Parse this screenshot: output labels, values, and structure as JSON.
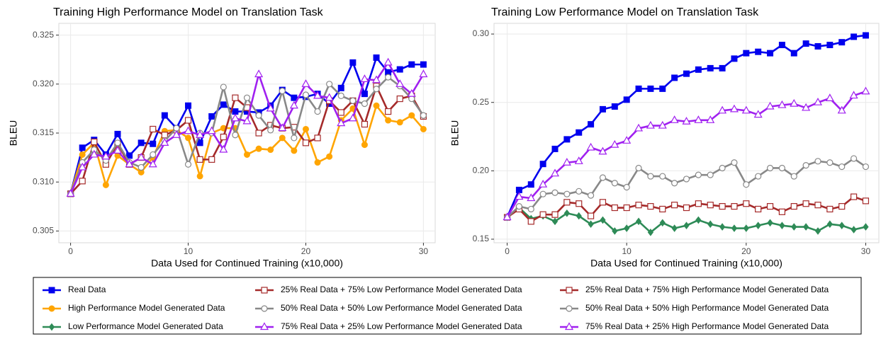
{
  "chart_data": [
    {
      "type": "line",
      "title": "Training High Performance Model on Translation Task",
      "x_label": "Data Used for Continued Training (x10,000)",
      "y_label": "BLEU",
      "x": [
        0,
        1,
        2,
        3,
        4,
        5,
        6,
        7,
        8,
        9,
        10,
        11,
        12,
        13,
        14,
        15,
        16,
        17,
        18,
        19,
        20,
        21,
        22,
        23,
        24,
        25,
        26,
        27,
        28,
        29,
        30
      ],
      "xlim": [
        -1,
        31
      ],
      "xticks": [
        0,
        10,
        20,
        30
      ],
      "ylim": [
        0.3038,
        0.3262
      ],
      "yticks": [
        0.305,
        {
          "value": 0.31,
          "label": "0.310"
        },
        0.315,
        {
          "value": 0.32,
          "label": "0.320"
        },
        0.325
      ],
      "grid": true,
      "series": [
        {
          "name": "Real Data",
          "color": "#0000ee",
          "marker": "square",
          "values": [
            0.3088,
            0.3135,
            0.3143,
            0.3128,
            0.3149,
            0.3127,
            0.314,
            0.3139,
            0.3168,
            0.3155,
            0.3178,
            0.314,
            0.3167,
            0.3179,
            0.3172,
            0.3172,
            0.3171,
            0.3178,
            0.3194,
            0.3186,
            0.3187,
            0.319,
            0.318,
            0.3196,
            0.3222,
            0.319,
            0.3227,
            0.3212,
            0.3215,
            0.322,
            0.322
          ]
        },
        {
          "name": "High Performance Model Generated Data",
          "color": "#ffa500",
          "marker": "circle",
          "values": [
            0.3088,
            0.3128,
            0.314,
            0.3097,
            0.3127,
            0.3118,
            0.311,
            0.3125,
            0.3152,
            0.3153,
            0.3145,
            0.3106,
            0.315,
            0.3155,
            0.3155,
            0.3128,
            0.3134,
            0.3133,
            0.3145,
            0.3132,
            0.3154,
            0.312,
            0.3126,
            0.3163,
            0.3175,
            0.3138,
            0.3178,
            0.3163,
            0.3161,
            0.3168,
            0.3154
          ]
        },
        {
          "name": "25% Real Data + 75% High Performance Model Generated Data",
          "color": "#a52a2a",
          "marker": "open-square",
          "values": [
            0.3088,
            0.3101,
            0.3141,
            0.3118,
            0.3139,
            0.3118,
            0.3125,
            0.3154,
            0.3148,
            0.3153,
            0.3163,
            0.3123,
            0.3123,
            0.3146,
            0.3186,
            0.3176,
            0.315,
            0.3158,
            0.3155,
            0.3156,
            0.314,
            0.3145,
            0.3183,
            0.3171,
            0.3183,
            0.3159,
            0.3198,
            0.3172,
            0.3185,
            0.3188,
            0.3167
          ]
        },
        {
          "name": "50% Real Data + 50% High Performance Model Generated Data",
          "color": "#888888",
          "marker": "open-circle",
          "values": [
            0.3088,
            0.312,
            0.3133,
            0.3122,
            0.314,
            0.312,
            0.3115,
            0.3128,
            0.3142,
            0.3155,
            0.3118,
            0.315,
            0.315,
            0.3197,
            0.3148,
            0.3186,
            0.3168,
            0.3153,
            0.3193,
            0.3145,
            0.3189,
            0.3172,
            0.32,
            0.3188,
            0.3183,
            0.318,
            0.3195,
            0.3207,
            0.3198,
            0.3185,
            0.3168
          ]
        },
        {
          "name": "75% Real Data + 25% High Performance Model Generated Data",
          "color": "#a020f0",
          "marker": "open-triangle",
          "values": [
            0.3088,
            0.3115,
            0.3128,
            0.3126,
            0.3132,
            0.3118,
            0.3125,
            0.3118,
            0.314,
            0.3148,
            0.3152,
            0.3148,
            0.3152,
            0.3133,
            0.3165,
            0.3162,
            0.321,
            0.3175,
            0.3155,
            0.3178,
            0.32,
            0.3188,
            0.3186,
            0.316,
            0.3165,
            0.3205,
            0.3204,
            0.3222,
            0.32,
            0.319,
            0.321
          ]
        }
      ]
    },
    {
      "type": "line",
      "title": "Training Low Performance Model on Translation Task",
      "x_label": "Data Used for Continued Training (x10,000)",
      "y_label": "BLEU",
      "x": [
        0,
        1,
        2,
        3,
        4,
        5,
        6,
        7,
        8,
        9,
        10,
        11,
        12,
        13,
        14,
        15,
        16,
        17,
        18,
        19,
        20,
        21,
        22,
        23,
        24,
        25,
        26,
        27,
        28,
        29,
        30
      ],
      "xlim": [
        -1.1,
        31.1
      ],
      "xticks": [
        0,
        10,
        20,
        30
      ],
      "ylim": [
        0.1474,
        0.3078
      ],
      "yticks": [
        0.15,
        {
          "value": 0.2,
          "label": "0.20"
        },
        0.25,
        {
          "value": 0.3,
          "label": "0.30"
        }
      ],
      "grid": true,
      "series": [
        {
          "name": "Real Data",
          "color": "#0000ee",
          "marker": "square",
          "values": [
            0.166,
            0.186,
            0.19,
            0.205,
            0.216,
            0.223,
            0.228,
            0.234,
            0.245,
            0.247,
            0.252,
            0.26,
            0.26,
            0.26,
            0.268,
            0.271,
            0.274,
            0.275,
            0.275,
            0.282,
            0.286,
            0.287,
            0.286,
            0.292,
            0.286,
            0.293,
            0.291,
            0.292,
            0.294,
            0.298,
            0.299
          ]
        },
        {
          "name": "Low Performance Model Generated Data",
          "color": "#2e8b57",
          "marker": "diamond",
          "values": [
            0.166,
            0.173,
            0.165,
            0.167,
            0.163,
            0.169,
            0.167,
            0.161,
            0.164,
            0.156,
            0.158,
            0.163,
            0.155,
            0.162,
            0.158,
            0.16,
            0.164,
            0.161,
            0.159,
            0.158,
            0.158,
            0.16,
            0.162,
            0.16,
            0.159,
            0.159,
            0.156,
            0.161,
            0.16,
            0.157,
            0.159
          ]
        },
        {
          "name": "25% Real Data + 75% Low Performance Model Generated Data",
          "color": "#a52a2a",
          "marker": "open-square",
          "values": [
            0.166,
            0.172,
            0.163,
            0.168,
            0.168,
            0.177,
            0.176,
            0.167,
            0.177,
            0.173,
            0.173,
            0.175,
            0.174,
            0.172,
            0.175,
            0.173,
            0.176,
            0.175,
            0.174,
            0.174,
            0.176,
            0.172,
            0.174,
            0.17,
            0.174,
            0.176,
            0.175,
            0.172,
            0.174,
            0.181,
            0.178
          ]
        },
        {
          "name": "50% Real Data + 50% Low Performance Model Generated Data",
          "color": "#888888",
          "marker": "open-circle",
          "values": [
            0.166,
            0.174,
            0.172,
            0.183,
            0.184,
            0.183,
            0.185,
            0.182,
            0.195,
            0.191,
            0.188,
            0.202,
            0.196,
            0.196,
            0.191,
            0.194,
            0.197,
            0.197,
            0.202,
            0.206,
            0.19,
            0.196,
            0.202,
            0.202,
            0.196,
            0.204,
            0.207,
            0.206,
            0.203,
            0.209,
            0.203
          ]
        },
        {
          "name": "75% Real Data + 25% Low Performance Model Generated Data",
          "color": "#a020f0",
          "marker": "open-triangle",
          "values": [
            0.166,
            0.181,
            0.18,
            0.19,
            0.198,
            0.206,
            0.207,
            0.217,
            0.214,
            0.219,
            0.222,
            0.231,
            0.233,
            0.233,
            0.237,
            0.236,
            0.237,
            0.237,
            0.244,
            0.245,
            0.244,
            0.241,
            0.247,
            0.248,
            0.249,
            0.246,
            0.25,
            0.253,
            0.244,
            0.255,
            0.258
          ]
        }
      ]
    }
  ]
}
